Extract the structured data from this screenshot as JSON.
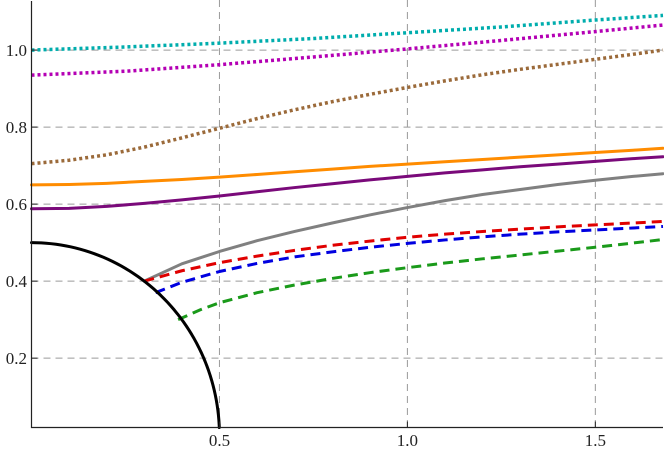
{
  "chart_data": {
    "type": "line",
    "title": "",
    "xlabel": "",
    "ylabel": "",
    "xlim": [
      0,
      1.68
    ],
    "ylim": [
      0.02,
      1.13
    ],
    "grid": true,
    "x_ticks": [
      {
        "value": 0.5,
        "label": "0.5"
      },
      {
        "value": 1.0,
        "label": "1.0"
      },
      {
        "value": 1.5,
        "label": "1.5"
      }
    ],
    "y_ticks": [
      {
        "value": 0.2,
        "label": "0.2"
      },
      {
        "value": 0.4,
        "label": "0.4"
      },
      {
        "value": 0.6,
        "label": "0.6"
      },
      {
        "value": 0.8,
        "label": "0.8"
      },
      {
        "value": 1.0,
        "label": "1.0"
      }
    ],
    "series": [
      {
        "name": "cyan-dotted",
        "color": "#00adad",
        "style": "dotted",
        "x": [
          0,
          0.25,
          0.5,
          0.75,
          1.0,
          1.25,
          1.5,
          1.68
        ],
        "y": [
          1.0,
          1.008,
          1.018,
          1.03,
          1.045,
          1.06,
          1.078,
          1.09
        ]
      },
      {
        "name": "magenta-dotted",
        "color": "#b400b4",
        "style": "dotted",
        "x": [
          0,
          0.25,
          0.5,
          0.75,
          1.0,
          1.25,
          1.5,
          1.68
        ],
        "y": [
          0.935,
          0.945,
          0.962,
          0.982,
          1.003,
          1.025,
          1.048,
          1.065
        ]
      },
      {
        "name": "brown-dotted",
        "color": "#9b6a3a",
        "style": "dotted",
        "x": [
          0,
          0.1,
          0.2,
          0.3,
          0.4,
          0.5,
          0.6,
          0.7,
          0.8,
          0.9,
          1.0,
          1.1,
          1.2,
          1.3,
          1.4,
          1.5,
          1.6,
          1.68
        ],
        "y": [
          0.705,
          0.714,
          0.728,
          0.748,
          0.772,
          0.797,
          0.822,
          0.845,
          0.866,
          0.885,
          0.903,
          0.92,
          0.936,
          0.95,
          0.963,
          0.976,
          0.989,
          1.0
        ]
      },
      {
        "name": "orange-solid",
        "color": "#ff8c00",
        "style": "solid",
        "x": [
          0,
          0.1,
          0.2,
          0.3,
          0.4,
          0.5,
          0.6,
          0.7,
          0.8,
          0.9,
          1.0,
          1.1,
          1.2,
          1.3,
          1.4,
          1.5,
          1.6,
          1.68
        ],
        "y": [
          0.65,
          0.651,
          0.654,
          0.659,
          0.664,
          0.67,
          0.677,
          0.684,
          0.691,
          0.698,
          0.704,
          0.71,
          0.716,
          0.722,
          0.728,
          0.734,
          0.74,
          0.745
        ]
      },
      {
        "name": "purple-solid",
        "color": "#7a0a7a",
        "style": "solid",
        "x": [
          0,
          0.1,
          0.2,
          0.3,
          0.4,
          0.5,
          0.6,
          0.7,
          0.8,
          0.9,
          1.0,
          1.1,
          1.2,
          1.3,
          1.4,
          1.5,
          1.6,
          1.68
        ],
        "y": [
          0.588,
          0.589,
          0.594,
          0.602,
          0.611,
          0.621,
          0.632,
          0.643,
          0.653,
          0.663,
          0.672,
          0.681,
          0.689,
          0.697,
          0.704,
          0.711,
          0.718,
          0.723
        ]
      },
      {
        "name": "gray-solid",
        "color": "#808080",
        "style": "solid",
        "x": [
          0.3,
          0.4,
          0.5,
          0.6,
          0.7,
          0.8,
          0.9,
          1.0,
          1.1,
          1.2,
          1.3,
          1.4,
          1.5,
          1.6,
          1.68
        ],
        "y": [
          0.4,
          0.445,
          0.477,
          0.505,
          0.529,
          0.551,
          0.572,
          0.591,
          0.609,
          0.625,
          0.638,
          0.651,
          0.662,
          0.672,
          0.679
        ]
      },
      {
        "name": "red-dashed",
        "color": "#e00000",
        "style": "dashed",
        "x": [
          0.3,
          0.4,
          0.5,
          0.6,
          0.7,
          0.8,
          0.9,
          1.0,
          1.1,
          1.2,
          1.3,
          1.4,
          1.5,
          1.6,
          1.68
        ],
        "y": [
          0.4,
          0.427,
          0.448,
          0.465,
          0.48,
          0.493,
          0.504,
          0.514,
          0.522,
          0.529,
          0.535,
          0.541,
          0.546,
          0.551,
          0.555
        ]
      },
      {
        "name": "blue-dashed",
        "color": "#0000e0",
        "style": "dashed",
        "x": [
          0.33,
          0.4,
          0.5,
          0.6,
          0.7,
          0.8,
          0.9,
          1.0,
          1.1,
          1.2,
          1.3,
          1.4,
          1.5,
          1.6,
          1.68
        ],
        "y": [
          0.37,
          0.397,
          0.425,
          0.446,
          0.463,
          0.476,
          0.488,
          0.498,
          0.507,
          0.515,
          0.522,
          0.528,
          0.533,
          0.538,
          0.542
        ]
      },
      {
        "name": "green-dashed",
        "color": "#1a9a1a",
        "style": "dashed",
        "x": [
          0.39,
          0.45,
          0.5,
          0.6,
          0.7,
          0.8,
          0.9,
          1.0,
          1.1,
          1.2,
          1.3,
          1.4,
          1.5,
          1.6,
          1.68
        ],
        "y": [
          0.3,
          0.326,
          0.344,
          0.37,
          0.39,
          0.407,
          0.422,
          0.435,
          0.447,
          0.458,
          0.468,
          0.478,
          0.488,
          0.499,
          0.508
        ]
      },
      {
        "name": "black-circle",
        "color": "#000000",
        "style": "solid",
        "shape": "quarter-circle",
        "radius": 0.5
      }
    ]
  }
}
